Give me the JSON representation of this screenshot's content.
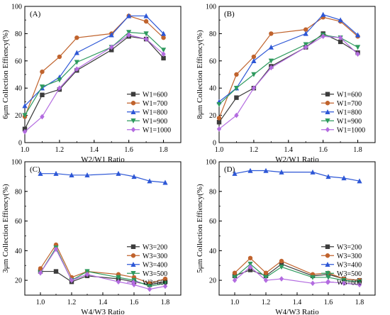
{
  "chart_data": [
    {
      "type": "line",
      "panel_label": "(A)",
      "xlabel": "W2/W1 Ratio",
      "ylabel": "6μm Collection Effiency(%)",
      "xlim": [
        1.0,
        1.9
      ],
      "ylim": [
        0,
        100
      ],
      "xticks": [
        "1.0",
        "1.2",
        "1.4",
        "1.6",
        "1.8"
      ],
      "yticks": [
        "0",
        "20",
        "40",
        "60",
        "80",
        "100"
      ],
      "x": [
        1.0,
        1.1,
        1.2,
        1.3,
        1.5,
        1.6,
        1.7,
        1.8
      ],
      "legend_position": "lower-right",
      "series": [
        {
          "name": "W1=600",
          "color": "#3c3c3c",
          "marker": "square",
          "values": [
            10,
            35,
            39,
            53,
            68,
            78,
            76,
            62
          ]
        },
        {
          "name": "W1=700",
          "color": "#c0632d",
          "marker": "circle",
          "values": [
            19,
            52,
            63,
            77,
            80,
            93,
            89,
            77
          ]
        },
        {
          "name": "W1=800",
          "color": "#2d57d6",
          "marker": "triangle",
          "values": [
            27,
            40,
            48,
            66,
            79,
            93,
            93,
            80
          ]
        },
        {
          "name": "W1=900",
          "color": "#2e9a5e",
          "marker": "triangle-down",
          "values": [
            20,
            41,
            46,
            59,
            70,
            81,
            80,
            68
          ]
        },
        {
          "name": "W1=1000",
          "color": "#b36be0",
          "marker": "diamond",
          "values": [
            8,
            19,
            40,
            54,
            70,
            79,
            76,
            65
          ]
        }
      ]
    },
    {
      "type": "line",
      "panel_label": "(B)",
      "xlabel": "W2/W1 Ratio",
      "ylabel": "8μm Collection Effiency(%)",
      "xlim": [
        1.0,
        1.9
      ],
      "ylim": [
        0,
        100
      ],
      "xticks": [
        "1.0",
        "1.2",
        "1.4",
        "1.6",
        "1.8"
      ],
      "yticks": [
        "0",
        "20",
        "40",
        "60",
        "80",
        "100"
      ],
      "x": [
        1.0,
        1.1,
        1.2,
        1.3,
        1.5,
        1.6,
        1.7,
        1.8
      ],
      "legend_position": "lower-right",
      "series": [
        {
          "name": "W1=600",
          "color": "#3c3c3c",
          "marker": "square",
          "values": [
            15,
            33,
            40,
            56,
            70,
            80,
            74,
            66
          ]
        },
        {
          "name": "W1=700",
          "color": "#c0632d",
          "marker": "circle",
          "values": [
            18,
            50,
            63,
            80,
            83,
            92,
            89,
            78
          ]
        },
        {
          "name": "W1=800",
          "color": "#2d57d6",
          "marker": "triangle",
          "values": [
            30,
            40,
            60,
            70,
            80,
            94,
            90,
            79
          ]
        },
        {
          "name": "W1=900",
          "color": "#2e9a5e",
          "marker": "triangle-down",
          "values": [
            28,
            40,
            50,
            60,
            72,
            79,
            77,
            70
          ]
        },
        {
          "name": "W1=1000",
          "color": "#b36be0",
          "marker": "diamond",
          "values": [
            10,
            20,
            40,
            55,
            70,
            78,
            77,
            65
          ]
        }
      ]
    },
    {
      "type": "line",
      "panel_label": "(C)",
      "xlabel": "W4/W3 Ratio",
      "ylabel": "3μm Collection Effiency(%)",
      "xlim": [
        0.9,
        1.9
      ],
      "ylim": [
        10,
        100
      ],
      "xticks": [
        "1.0",
        "1.2",
        "1.4",
        "1.6",
        "1.8"
      ],
      "yticks": [
        "20",
        "40",
        "60",
        "80",
        "100"
      ],
      "x": [
        1.0,
        1.1,
        1.2,
        1.3,
        1.5,
        1.6,
        1.7,
        1.8
      ],
      "legend_position": "lower-right",
      "series": [
        {
          "name": "W3=200",
          "color": "#3c3c3c",
          "marker": "square",
          "values": [
            26,
            26,
            19,
            23,
            21,
            19,
            17,
            19
          ]
        },
        {
          "name": "W3=300",
          "color": "#c0632d",
          "marker": "circle",
          "values": [
            28,
            44,
            22,
            26,
            24,
            22,
            18,
            21
          ]
        },
        {
          "name": "W3=400",
          "color": "#2d57d6",
          "marker": "triangle",
          "values": [
            92,
            92,
            91,
            91,
            92,
            90,
            87,
            86
          ]
        },
        {
          "name": "W3=500",
          "color": "#2e9a5e",
          "marker": "triangle-down",
          "values": [
            25,
            42,
            20,
            26,
            22,
            20,
            16,
            18
          ]
        },
        {
          "name": "W3=600",
          "color": "#b36be0",
          "marker": "diamond",
          "values": [
            25,
            41,
            20,
            24,
            19,
            17,
            14,
            16
          ]
        }
      ]
    },
    {
      "type": "line",
      "panel_label": "(D)",
      "xlabel": "W4/W3 Ratio",
      "ylabel": "5μm Collection Effiency(%)",
      "xlim": [
        0.9,
        1.9
      ],
      "ylim": [
        10,
        100
      ],
      "xticks": [
        "1.0",
        "1.2",
        "1.4",
        "1.6",
        "1.8"
      ],
      "yticks": [
        "20",
        "40",
        "60",
        "80",
        "100"
      ],
      "x": [
        1.0,
        1.1,
        1.2,
        1.3,
        1.5,
        1.6,
        1.7,
        1.8
      ],
      "legend_position": "lower-right",
      "series": [
        {
          "name": "W3=200",
          "color": "#3c3c3c",
          "marker": "square",
          "values": [
            23,
            27,
            23,
            31,
            23,
            24,
            21,
            20
          ]
        },
        {
          "name": "W3=300",
          "color": "#c0632d",
          "marker": "circle",
          "values": [
            25,
            35,
            25,
            33,
            24,
            25,
            21,
            20
          ]
        },
        {
          "name": "W3=400",
          "color": "#2d57d6",
          "marker": "triangle",
          "values": [
            92,
            94,
            94,
            93,
            93,
            90,
            89,
            87
          ]
        },
        {
          "name": "W3=500",
          "color": "#2e9a5e",
          "marker": "triangle-down",
          "values": [
            22,
            31,
            22,
            29,
            22,
            22,
            20,
            19
          ]
        },
        {
          "name": "W3=600",
          "color": "#b36be0",
          "marker": "diamond",
          "values": [
            20,
            29,
            20,
            21,
            18,
            19,
            18,
            17
          ]
        }
      ]
    }
  ]
}
